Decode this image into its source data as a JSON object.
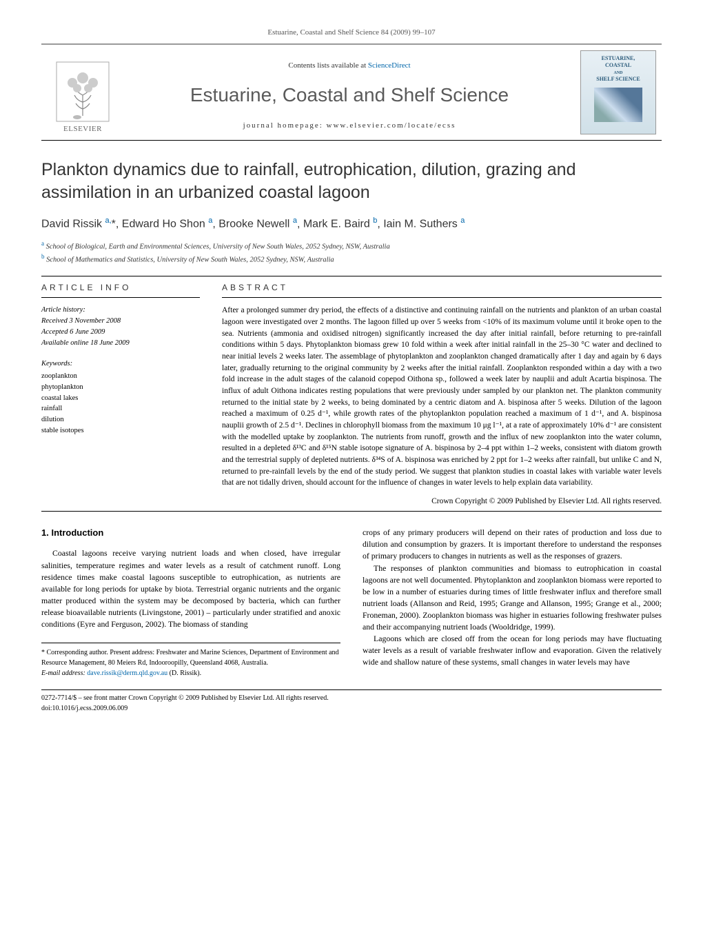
{
  "runner": "Estuarine, Coastal and Shelf Science 84 (2009) 99–107",
  "masthead": {
    "contents_prefix": "Contents lists available at ",
    "sciencedirect": "ScienceDirect",
    "journal_title": "Estuarine, Coastal and Shelf Science",
    "homepage_prefix": "journal homepage: ",
    "homepage_url": "www.elsevier.com/locate/ecss",
    "publisher": "ELSEVIER",
    "cover_line1": "ESTUARINE,",
    "cover_line2": "COASTAL",
    "cover_line3": "AND",
    "cover_line4": "SHELF SCIENCE"
  },
  "article": {
    "title": "Plankton dynamics due to rainfall, eutrophication, dilution, grazing and assimilation in an urbanized coastal lagoon",
    "authors_html": "David Rissik <sup>a,</sup>*, Edward Ho Shon <sup>a</sup>, Brooke Newell <sup>a</sup>, Mark E. Baird <sup>b</sup>, Iain M. Suthers <sup>a</sup>",
    "aff_a": "a School of Biological, Earth and Environmental Sciences, University of New South Wales, 2052 Sydney, NSW, Australia",
    "aff_b": "b School of Mathematics and Statistics, University of New South Wales, 2052 Sydney, NSW, Australia"
  },
  "info": {
    "head": "ARTICLE INFO",
    "history_label": "Article history:",
    "received": "Received 3 November 2008",
    "accepted": "Accepted 6 June 2009",
    "online": "Available online 18 June 2009",
    "keywords_label": "Keywords:",
    "keywords": [
      "zooplankton",
      "phytoplankton",
      "coastal lakes",
      "rainfall",
      "dilution",
      "stable isotopes"
    ]
  },
  "abstract": {
    "head": "ABSTRACT",
    "text": "After a prolonged summer dry period, the effects of a distinctive and continuing rainfall on the nutrients and plankton of an urban coastal lagoon were investigated over 2 months. The lagoon filled up over 5 weeks from <10% of its maximum volume until it broke open to the sea. Nutrients (ammonia and oxidised nitrogen) significantly increased the day after initial rainfall, before returning to pre-rainfall conditions within 5 days. Phytoplankton biomass grew 10 fold within a week after initial rainfall in the 25–30 °C water and declined to near initial levels 2 weeks later. The assemblage of phytoplankton and zooplankton changed dramatically after 1 day and again by 6 days later, gradually returning to the original community by 2 weeks after the initial rainfall. Zooplankton responded within a day with a two fold increase in the adult stages of the calanoid copepod Oithona sp., followed a week later by nauplii and adult Acartia bispinosa. The influx of adult Oithona indicates resting populations that were previously under sampled by our plankton net. The plankton community returned to the initial state by 2 weeks, to being dominated by a centric diatom and A. bispinosa after 5 weeks. Dilution of the lagoon reached a maximum of 0.25 d⁻¹, while growth rates of the phytoplankton population reached a maximum of 1 d⁻¹, and A. bispinosa nauplii growth of 2.5 d⁻¹. Declines in chlorophyll biomass from the maximum 10 μg l⁻¹, at a rate of approximately 10% d⁻¹ are consistent with the modelled uptake by zooplankton. The nutrients from runoff, growth and the influx of new zooplankton into the water column, resulted in a depleted δ¹³C and δ¹⁵N stable isotope signature of A. bispinosa by 2–4 ppt within 1–2 weeks, consistent with diatom growth and the terrestrial supply of depleted nutrients. δ³⁴S of A. bispinosa was enriched by 2 ppt for 1–2 weeks after rainfall, but unlike C and N, returned to pre-rainfall levels by the end of the study period. We suggest that plankton studies in coastal lakes with variable water levels that are not tidally driven, should account for the influence of changes in water levels to help explain data variability.",
    "copyright": "Crown Copyright © 2009 Published by Elsevier Ltd. All rights reserved."
  },
  "intro": {
    "head": "1. Introduction",
    "left_p1": "Coastal lagoons receive varying nutrient loads and when closed, have irregular salinities, temperature regimes and water levels as a result of catchment runoff. Long residence times make coastal lagoons susceptible to eutrophication, as nutrients are available for long periods for uptake by biota. Terrestrial organic nutrients and the organic matter produced within the system may be decomposed by bacteria, which can further release bioavailable nutrients (Livingstone, 2001) – particularly under stratified and anoxic conditions (Eyre and Ferguson, 2002). The biomass of standing",
    "right_p1": "crops of any primary producers will depend on their rates of production and loss due to dilution and consumption by grazers. It is important therefore to understand the responses of primary producers to changes in nutrients as well as the responses of grazers.",
    "right_p2": "The responses of plankton communities and biomass to eutrophication in coastal lagoons are not well documented. Phytoplankton and zooplankton biomass were reported to be low in a number of estuaries during times of little freshwater influx and therefore small nutrient loads (Allanson and Reid, 1995; Grange and Allanson, 1995; Grange et al., 2000; Froneman, 2000). Zooplankton biomass was higher in estuaries following freshwater pulses and their accompanying nutrient loads (Wooldridge, 1999).",
    "right_p3": "Lagoons which are closed off from the ocean for long periods may have fluctuating water levels as a result of variable freshwater inflow and evaporation. Given the relatively wide and shallow nature of these systems, small changes in water levels may have"
  },
  "footnotes": {
    "corr": "* Corresponding author. Present address: Freshwater and Marine Sciences, Department of Environment and Resource Management, 80 Meiers Rd, Indooroopilly, Queensland 4068, Australia.",
    "email_label": "E-mail address: ",
    "email": "dave.rissik@derm.qld.gov.au",
    "email_suffix": " (D. Rissik)."
  },
  "footer": {
    "line1": "0272-7714/$ – see front matter Crown Copyright © 2009 Published by Elsevier Ltd. All rights reserved.",
    "line2": "doi:10.1016/j.ecss.2009.06.009"
  }
}
